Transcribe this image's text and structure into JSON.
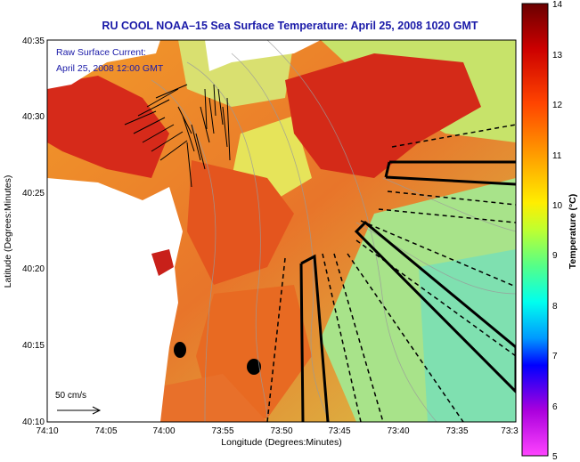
{
  "title": "RU COOL  NOAA–15  Sea Surface Temperature:  April 25, 2008 1020 GMT",
  "overlay": {
    "line1": "Raw Surface Current:",
    "line2": "April 25, 2008 12:00 GMT",
    "scale_label": "50 cm/s"
  },
  "axes": {
    "xlabel": "Longitude (Degrees:Minutes)",
    "ylabel": "Latitude (Degrees:Minutes)",
    "x_ticks": [
      "74:10",
      "74:05",
      "74:00",
      "73:55",
      "73:50",
      "73:45",
      "73:40",
      "73:35",
      "73:3"
    ],
    "y_ticks": [
      "40:35",
      "40:30",
      "40:25",
      "40:20",
      "40:15",
      "40:10"
    ]
  },
  "colorbar": {
    "label": "Temperature (°C)",
    "ticks": [
      "14",
      "13",
      "12",
      "11",
      "10",
      "9",
      "8",
      "7",
      "6",
      "5"
    ],
    "range": [
      5,
      14
    ]
  },
  "colors": {
    "title": "#1a1aa8",
    "land": "#ffffff",
    "warm": "#d92c18",
    "mid": "#f08a20",
    "cool": "#9ee08a"
  }
}
